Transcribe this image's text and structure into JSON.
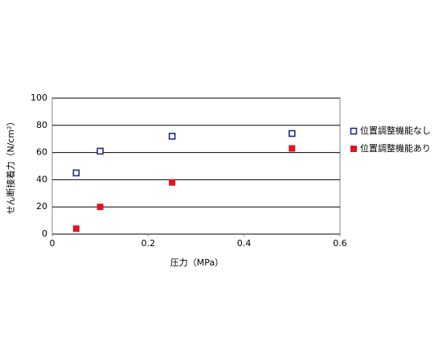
{
  "chart_data": {
    "type": "scatter",
    "x_label": "圧力（MPa）",
    "y_label": "せん断接着力（N/cm²）",
    "xlim": [
      0,
      0.6
    ],
    "xticks": [
      0,
      0.2,
      0.4,
      0.6
    ],
    "ylim": [
      0,
      100
    ],
    "yticks": [
      0,
      20,
      40,
      60,
      80,
      100
    ],
    "grid": true,
    "legend": "right",
    "series": [
      {
        "name": "位置調整機能なし",
        "color": "#1f2a8a",
        "marker": "open-square",
        "x": [
          0.05,
          0.1,
          0.25,
          0.5
        ],
        "values": [
          45,
          61,
          72,
          74
        ]
      },
      {
        "name": "位置調整機能あり",
        "color": "#e0141e",
        "marker": "filled-square",
        "x": [
          0.05,
          0.1,
          0.25,
          0.5
        ],
        "values": [
          4,
          20,
          38,
          63
        ]
      }
    ]
  }
}
